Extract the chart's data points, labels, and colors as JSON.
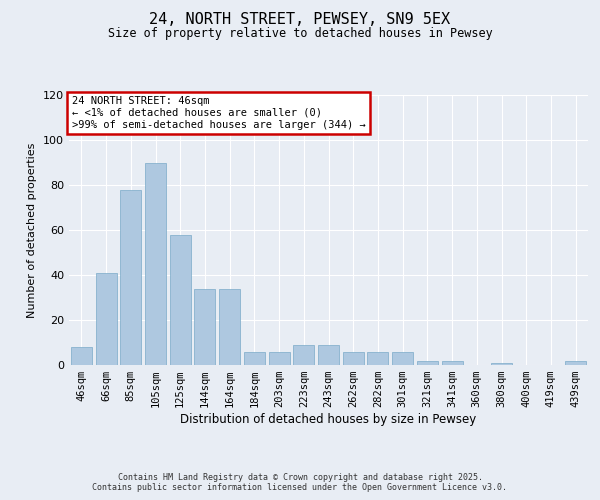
{
  "title1": "24, NORTH STREET, PEWSEY, SN9 5EX",
  "title2": "Size of property relative to detached houses in Pewsey",
  "xlabel": "Distribution of detached houses by size in Pewsey",
  "ylabel": "Number of detached properties",
  "categories": [
    "46sqm",
    "66sqm",
    "85sqm",
    "105sqm",
    "125sqm",
    "144sqm",
    "164sqm",
    "184sqm",
    "203sqm",
    "223sqm",
    "243sqm",
    "262sqm",
    "282sqm",
    "301sqm",
    "321sqm",
    "341sqm",
    "360sqm",
    "380sqm",
    "400sqm",
    "419sqm",
    "439sqm"
  ],
  "values": [
    8,
    41,
    78,
    90,
    58,
    34,
    34,
    6,
    6,
    9,
    9,
    6,
    6,
    6,
    2,
    2,
    0,
    1,
    0,
    0,
    2
  ],
  "bar_color": "#aec8e0",
  "bar_edge_color": "#7aaac8",
  "bg_color": "#e8edf4",
  "ylim": [
    0,
    120
  ],
  "yticks": [
    0,
    20,
    40,
    60,
    80,
    100,
    120
  ],
  "annotation_title": "24 NORTH STREET: 46sqm",
  "annotation_line1": "← <1% of detached houses are smaller (0)",
  "annotation_line2": ">99% of semi-detached houses are larger (344) →",
  "annotation_box_facecolor": "#ffffff",
  "annotation_box_edgecolor": "#cc0000",
  "footer1": "Contains HM Land Registry data © Crown copyright and database right 2025.",
  "footer2": "Contains public sector information licensed under the Open Government Licence v3.0."
}
